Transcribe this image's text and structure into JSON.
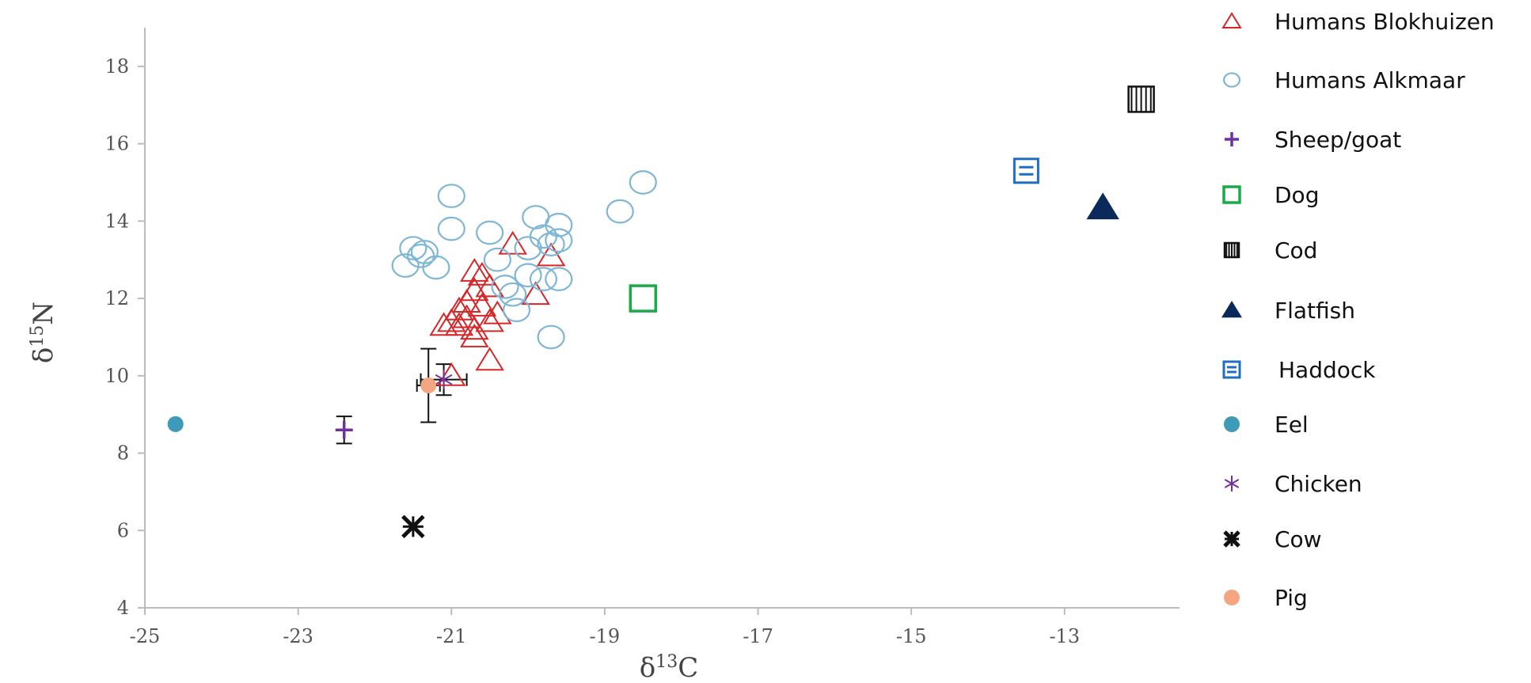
{
  "chart_data": {
    "type": "scatter",
    "title": "",
    "xlabel": "δ-13C",
    "ylabel": "δ-15N",
    "xlim": [
      -25,
      -11.5
    ],
    "ylim": [
      4,
      19
    ],
    "x_ticks": [
      -25,
      -23,
      -21,
      -19,
      -17,
      -15,
      -13
    ],
    "y_ticks": [
      4,
      6,
      8,
      10,
      12,
      14,
      16,
      18
    ],
    "grid": false,
    "legend_position": "right",
    "series": [
      {
        "name": "Humans Blokhuizen",
        "marker": "triangle-open",
        "color": "#d62728",
        "points": [
          [
            -20.7,
            12.7
          ],
          [
            -20.2,
            13.4
          ],
          [
            -19.7,
            13.1
          ],
          [
            -20.6,
            12.6
          ],
          [
            -20.5,
            12.3
          ],
          [
            -20.7,
            12.2
          ],
          [
            -20.8,
            11.9
          ],
          [
            -20.6,
            11.8
          ],
          [
            -20.9,
            11.7
          ],
          [
            -20.4,
            11.6
          ],
          [
            -20.8,
            11.5
          ],
          [
            -21.0,
            11.4
          ],
          [
            -20.9,
            11.3
          ],
          [
            -21.1,
            11.3
          ],
          [
            -20.7,
            11.2
          ],
          [
            -20.7,
            11.0
          ],
          [
            -20.5,
            11.4
          ],
          [
            -20.5,
            10.4
          ],
          [
            -19.9,
            12.1
          ],
          [
            -21.0,
            10.0
          ]
        ]
      },
      {
        "name": "Humans Alkmaar",
        "marker": "circle-open",
        "color": "#7fb6d6",
        "points": [
          [
            -21.0,
            14.65
          ],
          [
            -21.0,
            13.8
          ],
          [
            -21.5,
            13.3
          ],
          [
            -21.35,
            13.2
          ],
          [
            -21.4,
            13.1
          ],
          [
            -21.6,
            12.85
          ],
          [
            -21.2,
            12.8
          ],
          [
            -20.5,
            13.7
          ],
          [
            -20.4,
            13.0
          ],
          [
            -20.3,
            12.3
          ],
          [
            -20.2,
            12.1
          ],
          [
            -20.15,
            11.7
          ],
          [
            -20.0,
            12.6
          ],
          [
            -19.9,
            14.1
          ],
          [
            -19.8,
            13.6
          ],
          [
            -19.6,
            13.9
          ],
          [
            -19.6,
            13.5
          ],
          [
            -19.7,
            13.4
          ],
          [
            -19.6,
            12.5
          ],
          [
            -19.8,
            12.5
          ],
          [
            -19.7,
            11.0
          ],
          [
            -18.8,
            14.25
          ],
          [
            -18.5,
            15.0
          ],
          [
            -20.0,
            13.3
          ]
        ]
      },
      {
        "name": "Sheep/goat",
        "marker": "plus",
        "color": "#7030a0",
        "points": [
          [
            -22.4,
            8.6
          ]
        ],
        "error_y": [
          0.35
        ]
      },
      {
        "name": "Dog",
        "marker": "square-open",
        "color": "#1aaa48",
        "points": [
          [
            -18.5,
            12.0
          ]
        ]
      },
      {
        "name": "Cod",
        "marker": "vbar-square",
        "color": "#111111",
        "points": [
          [
            -12.0,
            17.15
          ]
        ]
      },
      {
        "name": "Flatfish",
        "marker": "triangle-filled",
        "color": "#0b2a5b",
        "points": [
          [
            -12.5,
            14.35
          ]
        ]
      },
      {
        "name": "Haddock",
        "marker": "hbar-square",
        "color": "#1f6fc1",
        "points": [
          [
            -13.5,
            15.3
          ]
        ]
      },
      {
        "name": "Eel",
        "marker": "circle-filled",
        "color": "#3d9ab8",
        "points": [
          [
            -24.6,
            8.75
          ]
        ]
      },
      {
        "name": "Chicken",
        "marker": "asterisk",
        "color": "#7030a0",
        "points": [
          [
            -21.1,
            9.9
          ]
        ],
        "error_x": [
          0.3
        ],
        "error_y": [
          0.4
        ]
      },
      {
        "name": "Cow",
        "marker": "star-x",
        "color": "#111111",
        "points": [
          [
            -21.5,
            6.1
          ]
        ]
      },
      {
        "name": "Pig",
        "marker": "circle-filled",
        "color": "#f4a582",
        "points": [
          [
            -21.3,
            9.75
          ]
        ],
        "error_y": [
          0.95
        ],
        "error_x": [
          0.15
        ]
      }
    ]
  }
}
